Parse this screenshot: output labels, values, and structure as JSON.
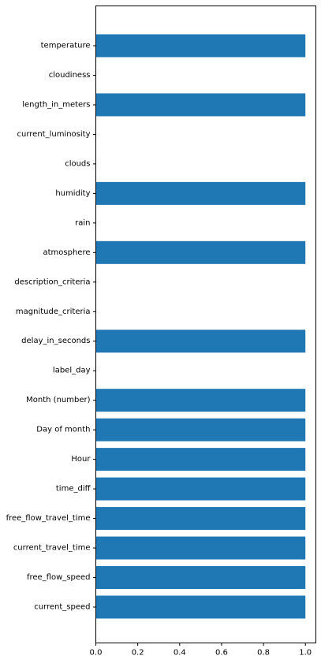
{
  "chart_data": {
    "type": "bar",
    "orientation": "horizontal",
    "title": "",
    "xlabel": "",
    "ylabel": "",
    "xlim": [
      0,
      1.05
    ],
    "xticks": [
      0.0,
      0.2,
      0.4,
      0.6,
      0.8,
      1.0
    ],
    "xtick_labels": [
      "0.0",
      "0.2",
      "0.4",
      "0.6",
      "0.8",
      "1.0"
    ],
    "grid": false,
    "bar_color": "#1f77b4",
    "categories": [
      "temperature",
      "cloudiness",
      "length_in_meters",
      "current_luminosity",
      "clouds",
      "humidity",
      "rain",
      "atmosphere",
      "description_criteria",
      "magnitude_criteria",
      "delay_in_seconds",
      "label_day",
      "Month (number)",
      "Day of month",
      "Hour",
      "time_diff",
      "free_flow_travel_time",
      "current_travel_time",
      "free_flow_speed",
      "current_speed"
    ],
    "values": [
      1,
      0,
      1,
      0,
      0,
      1,
      0,
      1,
      0,
      0,
      1,
      0,
      1,
      1,
      1,
      1,
      1,
      1,
      1,
      1
    ]
  }
}
